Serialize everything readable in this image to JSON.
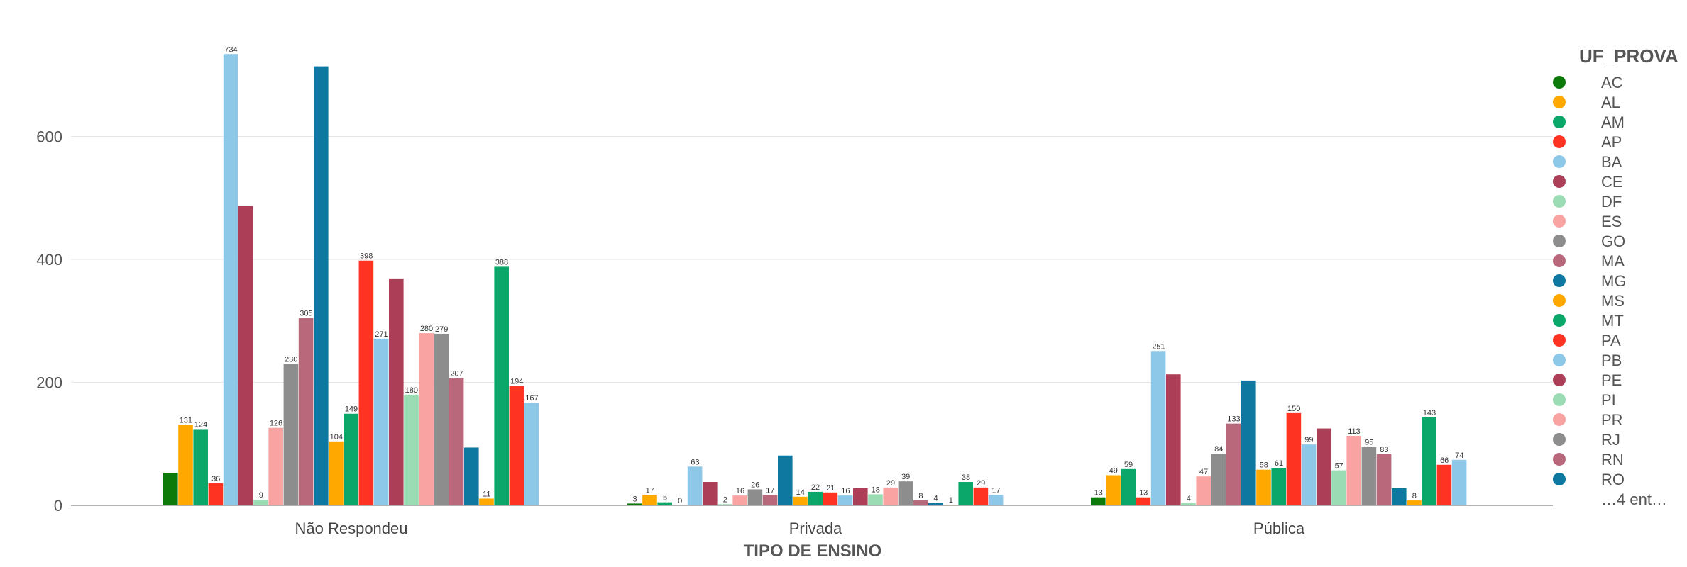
{
  "chart_data": {
    "type": "bar",
    "xlabel": "TIPO DE ENSINO",
    "ylabel": "",
    "ylim": [
      0,
      760
    ],
    "yticks": [
      0,
      200,
      400,
      600
    ],
    "grid": true,
    "legend_title": "UF_PROVA",
    "legend_position": "right",
    "legend_more": "…4 ent…",
    "categories": [
      "Não Respondeu",
      "Privada",
      "Pública"
    ],
    "series": [
      {
        "name": "AC",
        "color": "#0b7a0b",
        "values": [
          53,
          3,
          13
        ]
      },
      {
        "name": "AL",
        "color": "#ffa800",
        "values": [
          131,
          17,
          49
        ]
      },
      {
        "name": "AM",
        "color": "#0aa66a",
        "values": [
          124,
          5,
          59
        ]
      },
      {
        "name": "AP",
        "color": "#ff3322",
        "values": [
          36,
          0,
          13
        ]
      },
      {
        "name": "BA",
        "color": "#8ec8e8",
        "values": [
          734,
          63,
          251
        ]
      },
      {
        "name": "CE",
        "color": "#ad3e58",
        "values": [
          487,
          38,
          213
        ]
      },
      {
        "name": "DF",
        "color": "#9bdcb4",
        "values": [
          9,
          2,
          4
        ]
      },
      {
        "name": "ES",
        "color": "#f9a3a3",
        "values": [
          126,
          16,
          47
        ]
      },
      {
        "name": "GO",
        "color": "#8d8d8d",
        "values": [
          230,
          26,
          84
        ]
      },
      {
        "name": "MA",
        "color": "#b9687c",
        "values": [
          305,
          17,
          133
        ]
      },
      {
        "name": "MG",
        "color": "#0e78a0",
        "values": [
          714,
          81,
          203
        ]
      },
      {
        "name": "MS",
        "color": "#ffa800",
        "values": [
          104,
          14,
          58
        ]
      },
      {
        "name": "MT",
        "color": "#0aa66a",
        "values": [
          149,
          22,
          61
        ]
      },
      {
        "name": "PA",
        "color": "#ff3322",
        "values": [
          398,
          21,
          150
        ]
      },
      {
        "name": "PB",
        "color": "#8ec8e8",
        "values": [
          271,
          16,
          99
        ]
      },
      {
        "name": "PE",
        "color": "#ad3e58",
        "values": [
          369,
          28,
          125
        ]
      },
      {
        "name": "PI",
        "color": "#9bdcb4",
        "values": [
          180,
          18,
          57
        ]
      },
      {
        "name": "PR",
        "color": "#f9a3a3",
        "values": [
          280,
          29,
          113
        ]
      },
      {
        "name": "RJ",
        "color": "#8d8d8d",
        "values": [
          279,
          39,
          95
        ]
      },
      {
        "name": "RN",
        "color": "#b9687c",
        "values": [
          207,
          8,
          83
        ]
      },
      {
        "name": "RO",
        "color": "#0e78a0",
        "values": [
          94,
          4,
          28
        ]
      },
      {
        "name": "",
        "color": "#ffa800",
        "values": [
          11,
          1,
          8
        ]
      },
      {
        "name": "",
        "color": "#0aa66a",
        "values": [
          388,
          38,
          143
        ]
      },
      {
        "name": "",
        "color": "#ff3322",
        "values": [
          194,
          29,
          66
        ]
      },
      {
        "name": "",
        "color": "#8ec8e8",
        "values": [
          167,
          17,
          74
        ]
      }
    ],
    "data_labels": [
      [
        null,
        "131",
        "124",
        "36",
        "734",
        null,
        "9",
        "126",
        "230",
        "305",
        null,
        "104",
        "149",
        "398",
        "271",
        null,
        "180",
        "280",
        "279",
        "207",
        null,
        "11",
        "388",
        "194",
        "167"
      ],
      [
        "3",
        "17",
        "5",
        "0",
        "63",
        null,
        "2",
        "16",
        "26",
        "17",
        null,
        "14",
        "22",
        "21",
        "16",
        null,
        "18",
        "29",
        "39",
        "8",
        "4",
        "1",
        "38",
        "29",
        "17"
      ],
      [
        "13",
        "49",
        "59",
        "13",
        "251",
        null,
        "4",
        "47",
        "84",
        "133",
        null,
        "58",
        "61",
        "150",
        "99",
        null,
        "57",
        "113",
        "95",
        "83",
        null,
        "8",
        "143",
        "66",
        "74"
      ]
    ]
  }
}
